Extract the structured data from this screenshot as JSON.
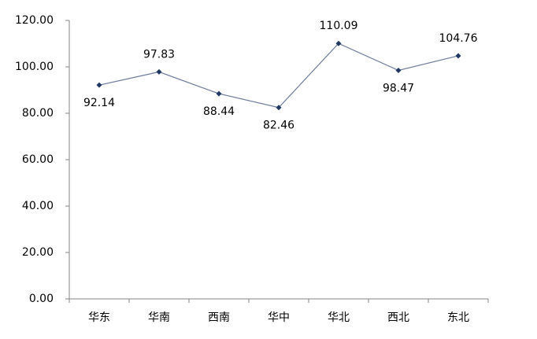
{
  "chart_data": {
    "type": "line",
    "categories": [
      "华东",
      "华南",
      "西南",
      "华中",
      "华北",
      "西北",
      "东北"
    ],
    "values": [
      92.14,
      97.83,
      88.44,
      82.46,
      110.09,
      98.47,
      104.76
    ],
    "color": "#1f3864",
    "ylim": [
      0,
      120
    ],
    "yticks": [
      {
        "value": 0,
        "label": "0.00"
      },
      {
        "value": 20,
        "label": "20.00"
      },
      {
        "value": 40,
        "label": "40.00"
      },
      {
        "value": 60,
        "label": "60.00"
      },
      {
        "value": 80,
        "label": "80.00"
      },
      {
        "value": 100,
        "label": "100.00"
      },
      {
        "value": 120,
        "label": "120.00"
      }
    ]
  }
}
